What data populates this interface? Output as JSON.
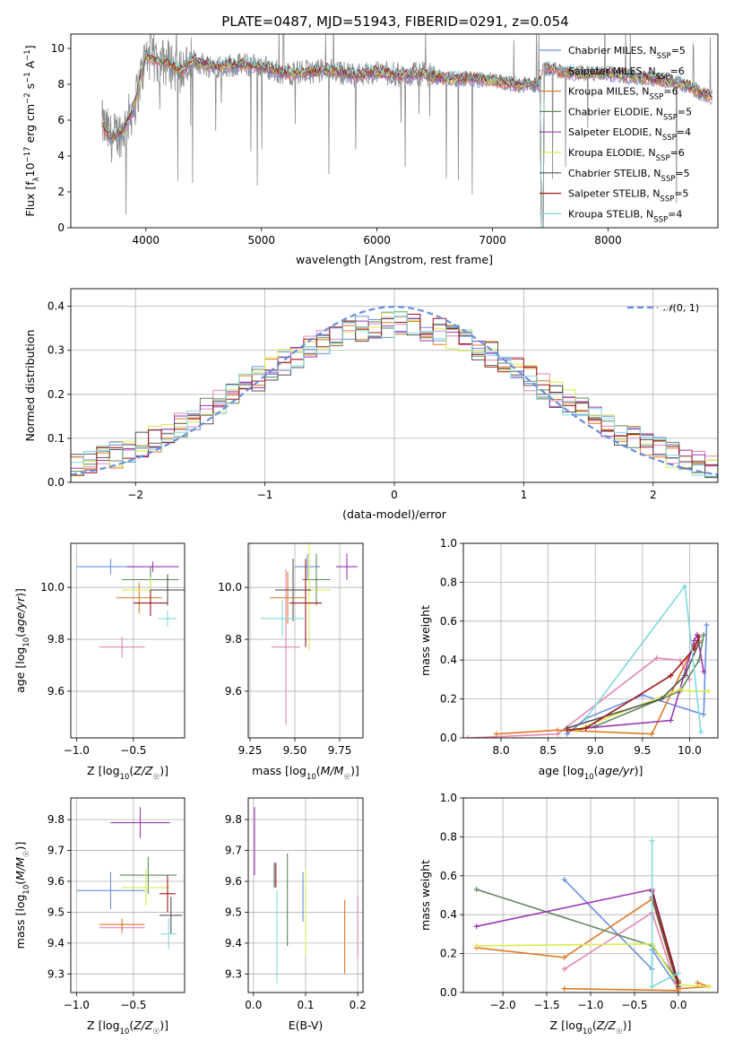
{
  "title": "PLATE=0487, MJD=51943, FIBERID=0291, z=0.054",
  "models": [
    {
      "name": "Chabrier MILES",
      "n": "5",
      "color": "#6a8fe0"
    },
    {
      "name": "Salpeter MILES",
      "n": "6",
      "color": "#e486b3"
    },
    {
      "name": "Kroupa MILES",
      "n": "6",
      "color": "#e07a25"
    },
    {
      "name": "Chabrier ELODIE",
      "n": "5",
      "color": "#5e8a5e"
    },
    {
      "name": "Salpeter ELODIE",
      "n": "4",
      "color": "#9a38b5"
    },
    {
      "name": "Kroupa ELODIE",
      "n": "6",
      "color": "#d8ee50"
    },
    {
      "name": "Chabrier STELIB",
      "n": "5",
      "color": "#555555"
    },
    {
      "name": "Salpeter STELIB",
      "n": "5",
      "color": "#a01818"
    },
    {
      "name": "Kroupa STELIB",
      "n": "4",
      "color": "#80d8dd"
    }
  ],
  "chart_data": [
    {
      "id": "spectrum",
      "type": "line",
      "xlabel": "wavelength [Angstrom, rest frame]",
      "ylabel": "Flux [f_λ 10^-17 erg cm^-2 s^-1 A^-1]",
      "xlim": [
        3350,
        8950
      ],
      "ylim": [
        0,
        10.8
      ],
      "xticks": [
        4000,
        5000,
        6000,
        7000,
        8000
      ],
      "yticks": [
        0,
        2,
        4,
        6,
        8,
        10
      ],
      "legend_position": "upper right",
      "spectrum_x": [
        3620,
        3700,
        3800,
        3900,
        4000,
        4100,
        4200,
        4300,
        4400,
        4600,
        4800,
        5000,
        5200,
        5400,
        5600,
        5800,
        6000,
        6200,
        6400,
        6600,
        6800,
        7000,
        7200,
        7400,
        7450,
        7600,
        7800,
        8000,
        8200,
        8400,
        8600,
        8700,
        8800,
        8900
      ],
      "spectrum_y": [
        5.8,
        5.0,
        5.4,
        6.8,
        9.6,
        9.3,
        9.2,
        8.7,
        9.3,
        9.0,
        9.1,
        9.0,
        8.6,
        8.7,
        8.8,
        8.5,
        8.7,
        8.5,
        8.6,
        8.3,
        8.3,
        8.2,
        8.0,
        8.0,
        8.9,
        8.7,
        8.6,
        8.6,
        8.4,
        8.3,
        8.1,
        7.9,
        7.5,
        7.3
      ]
    },
    {
      "id": "residuals",
      "type": "histogram",
      "xlabel": "(data-model)/error",
      "ylabel": "Normed distribution",
      "xlim": [
        -2.5,
        2.5
      ],
      "ylim": [
        0,
        0.44
      ],
      "xticks": [
        -2,
        -1,
        0,
        1,
        2
      ],
      "yticks": [
        0.0,
        0.1,
        0.2,
        0.3,
        0.4
      ],
      "grid": true,
      "reference_label": "N(0,1)",
      "legend_position": "upper right"
    },
    {
      "id": "z-age",
      "type": "errorbar",
      "xlabel": "Z [log10(Z/Z☉)]",
      "ylabel": "age [log10(age/yr)]",
      "xlim": [
        -1.05,
        -0.05
      ],
      "ylim": [
        9.42,
        10.17
      ],
      "xticks": [
        -1.0,
        -0.5
      ],
      "yticks": [
        9.6,
        9.8,
        10.0
      ],
      "grid": true,
      "points": [
        {
          "x": -0.7,
          "xerr": 0.3,
          "y": 10.08,
          "yerr": 0.03,
          "color": "#6a8fe0"
        },
        {
          "x": -0.6,
          "xerr": 0.2,
          "y": 9.77,
          "yerr": 0.04,
          "color": "#e486b3"
        },
        {
          "x": -0.45,
          "xerr": 0.2,
          "y": 9.96,
          "yerr": 0.06,
          "color": "#e07a25"
        },
        {
          "x": -0.35,
          "xerr": 0.25,
          "y": 10.03,
          "yerr": 0.05,
          "color": "#5e8a5e"
        },
        {
          "x": -0.33,
          "xerr": 0.23,
          "y": 10.08,
          "yerr": 0.02,
          "color": "#9a38b5"
        },
        {
          "x": -0.35,
          "xerr": 0.25,
          "y": 9.99,
          "yerr": 0.05,
          "color": "#d8ee50"
        },
        {
          "x": -0.2,
          "xerr": 0.15,
          "y": 9.99,
          "yerr": 0.06,
          "color": "#555555"
        },
        {
          "x": -0.35,
          "xerr": 0.15,
          "y": 9.94,
          "yerr": 0.05,
          "color": "#a01818"
        },
        {
          "x": -0.2,
          "xerr": 0.08,
          "y": 9.88,
          "yerr": 0.03,
          "color": "#80d8dd"
        }
      ]
    },
    {
      "id": "mass-age",
      "type": "errorbar",
      "xlabel": "mass [log10(M/M☉)]",
      "ylabel": "",
      "xlim": [
        9.24,
        9.88
      ],
      "ylim": [
        9.42,
        10.17
      ],
      "xticks": [
        9.25,
        9.5,
        9.75
      ],
      "yticks": [
        9.6,
        9.8,
        10.0
      ],
      "grid": true,
      "points": [
        {
          "x": 9.57,
          "xerr": 0.07,
          "y": 10.08,
          "yerr": 0.05,
          "color": "#6a8fe0"
        },
        {
          "x": 9.45,
          "xerr": 0.08,
          "y": 9.77,
          "yerr": 0.3,
          "color": "#e486b3"
        },
        {
          "x": 9.46,
          "xerr": 0.1,
          "y": 9.96,
          "yerr": 0.1,
          "color": "#e07a25"
        },
        {
          "x": 9.62,
          "xerr": 0.08,
          "y": 10.03,
          "yerr": 0.1,
          "color": "#5e8a5e"
        },
        {
          "x": 9.79,
          "xerr": 0.06,
          "y": 10.08,
          "yerr": 0.05,
          "color": "#9a38b5"
        },
        {
          "x": 9.58,
          "xerr": 0.12,
          "y": 9.99,
          "yerr": 0.23,
          "color": "#d8ee50"
        },
        {
          "x": 9.49,
          "xerr": 0.1,
          "y": 9.99,
          "yerr": 0.12,
          "color": "#555555"
        },
        {
          "x": 9.56,
          "xerr": 0.09,
          "y": 9.94,
          "yerr": 0.17,
          "color": "#a01818"
        },
        {
          "x": 9.43,
          "xerr": 0.12,
          "y": 9.88,
          "yerr": 0.07,
          "color": "#80d8dd"
        }
      ]
    },
    {
      "id": "age-weight",
      "type": "line",
      "xlabel": "age [log10(age/yr)]",
      "ylabel": "mass weight",
      "xlim": [
        7.6,
        10.3
      ],
      "ylim": [
        0,
        1.0
      ],
      "xticks": [
        8.0,
        8.5,
        9.0,
        9.5,
        10.0
      ],
      "yticks": [
        0.0,
        0.2,
        0.4,
        0.6,
        0.8,
        1.0
      ],
      "grid": true,
      "series": [
        {
          "color": "#6a8fe0",
          "x": [
            8.7,
            8.9,
            9.5,
            10.15,
            10.18
          ],
          "y": [
            0.02,
            0.1,
            0.22,
            0.12,
            0.58
          ]
        },
        {
          "color": "#e486b3",
          "x": [
            7.65,
            8.6,
            9.65,
            9.9,
            10.0
          ],
          "y": [
            0.0,
            0.02,
            0.41,
            0.4,
            0.3
          ]
        },
        {
          "color": "#e07a25",
          "x": [
            7.95,
            8.6,
            9.6,
            10.05,
            10.1
          ],
          "y": [
            0.02,
            0.04,
            0.02,
            0.48,
            0.5
          ]
        },
        {
          "color": "#5e8a5e",
          "x": [
            8.8,
            9.0,
            9.9,
            10.1,
            10.15
          ],
          "y": [
            0.04,
            0.06,
            0.24,
            0.4,
            0.53
          ]
        },
        {
          "color": "#9a38b5",
          "x": [
            8.9,
            9.8,
            10.05,
            10.08,
            10.15
          ],
          "y": [
            0.05,
            0.09,
            0.5,
            0.53,
            0.34
          ]
        },
        {
          "color": "#d8ee50",
          "x": [
            8.8,
            9.9,
            10.0,
            10.2
          ],
          "y": [
            0.04,
            0.25,
            0.24,
            0.24
          ]
        },
        {
          "color": "#555555",
          "x": [
            8.7,
            9.7,
            9.95,
            10.1
          ],
          "y": [
            0.05,
            0.2,
            0.32,
            0.49
          ]
        },
        {
          "color": "#a01818",
          "x": [
            8.7,
            8.9,
            9.8,
            10.05,
            10.1
          ],
          "y": [
            0.04,
            0.05,
            0.32,
            0.46,
            0.52
          ]
        },
        {
          "color": "#80d8dd",
          "x": [
            8.9,
            9.95,
            10.12
          ],
          "y": [
            0.1,
            0.78,
            0.03
          ]
        }
      ]
    },
    {
      "id": "z-mass",
      "type": "errorbar",
      "xlabel": "Z [log10(Z/Z☉)]",
      "ylabel": "mass [log10(M/M☉)]",
      "xlim": [
        -1.05,
        -0.05
      ],
      "ylim": [
        9.24,
        9.87
      ],
      "xticks": [
        -1.0,
        -0.5
      ],
      "yticks": [
        9.3,
        9.4,
        9.5,
        9.6,
        9.7,
        9.8
      ],
      "grid": true,
      "points": [
        {
          "x": -0.7,
          "xerr": 0.3,
          "y": 9.57,
          "yerr": 0.06,
          "color": "#6a8fe0"
        },
        {
          "x": -0.6,
          "xerr": 0.2,
          "y": 9.45,
          "yerr": 0.02,
          "color": "#e486b3"
        },
        {
          "x": -0.6,
          "xerr": 0.2,
          "y": 9.46,
          "yerr": 0.02,
          "color": "#e07a25"
        },
        {
          "x": -0.37,
          "xerr": 0.25,
          "y": 9.62,
          "yerr": 0.06,
          "color": "#5e8a5e"
        },
        {
          "x": -0.44,
          "xerr": 0.26,
          "y": 9.79,
          "yerr": 0.05,
          "color": "#9a38b5"
        },
        {
          "x": -0.39,
          "xerr": 0.21,
          "y": 9.58,
          "yerr": 0.06,
          "color": "#d8ee50"
        },
        {
          "x": -0.17,
          "xerr": 0.1,
          "y": 9.49,
          "yerr": 0.06,
          "color": "#555555"
        },
        {
          "x": -0.2,
          "xerr": 0.07,
          "y": 9.56,
          "yerr": 0.06,
          "color": "#a01818"
        },
        {
          "x": -0.19,
          "xerr": 0.07,
          "y": 9.43,
          "yerr": 0.05,
          "color": "#80d8dd"
        }
      ]
    },
    {
      "id": "ebv-mass",
      "type": "errorbar",
      "xlabel": "E(B-V)",
      "ylabel": "",
      "xlim": [
        -0.01,
        0.21
      ],
      "ylim": [
        9.24,
        9.87
      ],
      "xticks": [
        0.0,
        0.1,
        0.2
      ],
      "yticks": [
        9.3,
        9.4,
        9.5,
        9.6,
        9.7,
        9.8
      ],
      "grid": true,
      "points": [
        {
          "x": 0.095,
          "xerr": 0,
          "y": 9.55,
          "yerr": 0.08,
          "color": "#6a8fe0"
        },
        {
          "x": 0.2,
          "xerr": 0,
          "y": 9.45,
          "yerr": 0.1,
          "color": "#e486b3"
        },
        {
          "x": 0.175,
          "xerr": 0,
          "y": 9.42,
          "yerr": 0.12,
          "color": "#e07a25"
        },
        {
          "x": 0.065,
          "xerr": 0,
          "y": 9.54,
          "yerr": 0.15,
          "color": "#5e8a5e"
        },
        {
          "x": 0.002,
          "xerr": 0,
          "y": 9.73,
          "yerr": 0.11,
          "color": "#9a38b5"
        },
        {
          "x": 0.1,
          "xerr": 0,
          "y": 9.5,
          "yerr": 0.14,
          "color": "#d8ee50"
        },
        {
          "x": 0.04,
          "xerr": 0,
          "y": 9.62,
          "yerr": 0.04,
          "color": "#555555"
        },
        {
          "x": 0.043,
          "xerr": 0,
          "y": 9.62,
          "yerr": 0.04,
          "color": "#a01818"
        },
        {
          "x": 0.045,
          "xerr": 0,
          "y": 9.42,
          "yerr": 0.15,
          "color": "#80d8dd"
        }
      ]
    },
    {
      "id": "z-weight",
      "type": "line",
      "xlabel": "Z [log10(Z/Z☉)]",
      "ylabel": "mass weight",
      "xlim": [
        -2.45,
        0.45
      ],
      "ylim": [
        0,
        1.0
      ],
      "xticks": [
        -2.0,
        -1.5,
        -1.0,
        -0.5,
        0.0
      ],
      "yticks": [
        0.0,
        0.2,
        0.4,
        0.6,
        0.8,
        1.0
      ],
      "grid": true,
      "series": [
        {
          "color": "#6a8fe0",
          "x": [
            -1.3,
            -0.3,
            -0.3,
            0.0
          ],
          "y": [
            0.58,
            0.12,
            0.22,
            0.02
          ]
        },
        {
          "color": "#e486b3",
          "x": [
            -1.3,
            -0.3,
            0.0
          ],
          "y": [
            0.12,
            0.41,
            0.0
          ]
        },
        {
          "color": "#e07a25",
          "x": [
            -2.3,
            -1.3,
            -0.3,
            0.0,
            0.35,
            0.22
          ],
          "y": [
            0.23,
            0.18,
            0.48,
            0.02,
            0.03,
            0.05
          ]
        },
        {
          "color": "#5e8a5e",
          "x": [
            -2.3,
            -0.3,
            0.0
          ],
          "y": [
            0.53,
            0.24,
            0.06
          ]
        },
        {
          "color": "#9a38b5",
          "x": [
            -2.3,
            -0.3,
            0.0
          ],
          "y": [
            0.34,
            0.53,
            0.05
          ]
        },
        {
          "color": "#d8ee50",
          "x": [
            -2.3,
            -0.3,
            0.0,
            0.35
          ],
          "y": [
            0.24,
            0.25,
            0.04,
            0.03
          ]
        },
        {
          "color": "#555555",
          "x": [
            -0.3,
            0.0
          ],
          "y": [
            0.49,
            0.03
          ]
        },
        {
          "color": "#a01818",
          "x": [
            -0.3,
            0.0
          ],
          "y": [
            0.52,
            0.05
          ]
        },
        {
          "color": "#80d8dd",
          "x": [
            -0.3,
            -0.3,
            0.0
          ],
          "y": [
            0.78,
            0.03,
            0.1
          ]
        },
        {
          "color": "#e07a25",
          "x": [
            -1.3,
            0.0
          ],
          "y": [
            0.02,
            0.01
          ]
        }
      ]
    }
  ]
}
